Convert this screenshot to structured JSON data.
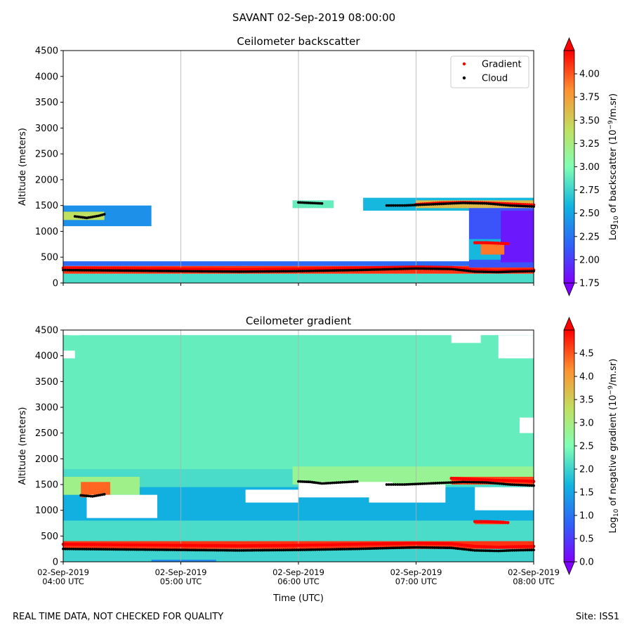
{
  "figure": {
    "suptitle": "SAVANT 02-Sep-2019 08:00:00",
    "footer_left": "REAL TIME DATA, NOT CHECKED FOR QUALITY",
    "footer_right": "Site: ISS1",
    "xlabel": "Time (UTC)"
  },
  "chart_data": [
    {
      "type": "heatmap",
      "title": "Ceilometer backscatter",
      "ylabel": "Altitude (meters)",
      "xlabel": "",
      "ylim": [
        0,
        4500
      ],
      "yticks": [
        0,
        500,
        1000,
        1500,
        2000,
        2500,
        3000,
        3500,
        4000,
        4500
      ],
      "xlim_hours": [
        4,
        8
      ],
      "xticks_hours": [
        4,
        5,
        6,
        7,
        8
      ],
      "xtick_labels": [],
      "grid": "vertical",
      "colorbar": {
        "label_parts": [
          "Log",
          "10",
          " of backscatter (10",
          "−9",
          "/m.sr)"
        ],
        "range": [
          1.75,
          4.25
        ],
        "ticks": [
          "1.75",
          "2.00",
          "2.25",
          "2.50",
          "2.75",
          "3.00",
          "3.25",
          "3.50",
          "3.75",
          "4.00"
        ],
        "extend": "both"
      },
      "legend": {
        "placement": "top-right",
        "entries": [
          {
            "name": "Gradient",
            "color": "#ff0000"
          },
          {
            "name": "Cloud",
            "color": "#000000"
          }
        ]
      },
      "regions": [
        {
          "t0": 4.0,
          "t1": 8.0,
          "h0": 0,
          "h1": 180,
          "value": 2.8
        },
        {
          "t0": 4.0,
          "t1": 8.0,
          "h0": 180,
          "h1": 330,
          "value": 4.1
        },
        {
          "t0": 4.0,
          "t1": 8.0,
          "h0": 330,
          "h1": 420,
          "value": 2.2
        },
        {
          "t0": 4.0,
          "t1": 4.75,
          "h0": 1100,
          "h1": 1500,
          "value": 2.4
        },
        {
          "t0": 4.0,
          "t1": 4.35,
          "h0": 1220,
          "h1": 1380,
          "value": 3.4
        },
        {
          "t0": 5.95,
          "t1": 6.3,
          "h0": 1450,
          "h1": 1600,
          "value": 2.9
        },
        {
          "t0": 6.55,
          "t1": 8.0,
          "h0": 1400,
          "h1": 1650,
          "value": 2.6
        },
        {
          "t0": 7.0,
          "t1": 8.0,
          "h0": 1450,
          "h1": 1600,
          "value": 3.6
        },
        {
          "t0": 7.45,
          "t1": 8.0,
          "h0": 300,
          "h1": 1450,
          "value": 2.1
        },
        {
          "t0": 7.72,
          "t1": 8.0,
          "h0": 400,
          "h1": 1400,
          "value": 1.85
        },
        {
          "t0": 7.45,
          "t1": 7.72,
          "h0": 450,
          "h1": 850,
          "value": 2.6
        },
        {
          "t0": 7.55,
          "t1": 7.75,
          "h0": 550,
          "h1": 780,
          "value": 3.9
        }
      ],
      "series": [
        {
          "name": "Gradient",
          "marker": "red-dot",
          "segments": [
            {
              "t": [
                4.0,
                4.5,
                5.0,
                5.5,
                6.0,
                6.5,
                7.0,
                7.3,
                7.5,
                7.7,
                7.8,
                8.0
              ],
              "h": [
                290,
                280,
                270,
                260,
                270,
                290,
                310,
                300,
                250,
                230,
                240,
                250
              ]
            },
            {
              "t": [
                7.0,
                7.2,
                7.4,
                7.6,
                7.8,
                8.0
              ],
              "h": [
                1520,
                1550,
                1560,
                1550,
                1530,
                1510
              ]
            },
            {
              "t": [
                7.5,
                7.6,
                7.7,
                7.78
              ],
              "h": [
                780,
                780,
                770,
                760
              ]
            }
          ]
        },
        {
          "name": "Cloud",
          "marker": "black-dot",
          "segments": [
            {
              "t": [
                4.0,
                4.5,
                5.0,
                5.5,
                6.0,
                6.5,
                7.0,
                7.3,
                7.5,
                7.7,
                7.8,
                8.0
              ],
              "h": [
                250,
                240,
                230,
                220,
                230,
                250,
                280,
                270,
                220,
                210,
                220,
                230
              ]
            },
            {
              "t": [
                4.1,
                4.2,
                4.3,
                4.35
              ],
              "h": [
                1290,
                1260,
                1300,
                1330
              ]
            },
            {
              "t": [
                6.0,
                6.1,
                6.2
              ],
              "h": [
                1560,
                1550,
                1540
              ]
            },
            {
              "t": [
                6.75,
                6.9,
                7.0,
                7.2,
                7.4,
                7.6,
                7.8,
                8.0
              ],
              "h": [
                1500,
                1500,
                1510,
                1530,
                1550,
                1540,
                1500,
                1480
              ]
            }
          ]
        }
      ]
    },
    {
      "type": "heatmap",
      "title": "Ceilometer gradient",
      "ylabel": "Altitude (meters)",
      "xlabel": "Time (UTC)",
      "ylim": [
        0,
        4500
      ],
      "yticks": [
        0,
        500,
        1000,
        1500,
        2000,
        2500,
        3000,
        3500,
        4000,
        4500
      ],
      "xlim_hours": [
        4,
        8
      ],
      "xticks_hours": [
        4,
        5,
        6,
        7,
        8
      ],
      "xtick_labels": [
        [
          "02-Sep-2019",
          "04:00 UTC"
        ],
        [
          "02-Sep-2019",
          "05:00 UTC"
        ],
        [
          "02-Sep-2019",
          "06:00 UTC"
        ],
        [
          "02-Sep-2019",
          "07:00 UTC"
        ],
        [
          "02-Sep-2019",
          "08:00 UTC"
        ]
      ],
      "grid": "vertical",
      "colorbar": {
        "label_parts": [
          "Log",
          "10",
          " of negative gradient (10",
          "−9",
          "/m.sr)"
        ],
        "range": [
          0.0,
          5.0
        ],
        "ticks": [
          "0.0",
          "0.5",
          "1.0",
          "1.5",
          "2.0",
          "2.5",
          "3.0",
          "3.5",
          "4.0",
          "4.5"
        ],
        "extend": "both"
      },
      "regions": [
        {
          "t0": 4.0,
          "t1": 8.0,
          "h0": 0,
          "h1": 4400,
          "value": 2.1
        },
        {
          "t0": 4.0,
          "t1": 8.0,
          "h0": 1800,
          "h1": 4400,
          "value": 2.3
        },
        {
          "t0": 4.0,
          "t1": 8.0,
          "h0": 800,
          "h1": 1450,
          "value": 1.6
        },
        {
          "t0": 4.0,
          "t1": 8.0,
          "h0": 0,
          "h1": 250,
          "value": 2.0
        },
        {
          "t0": 4.0,
          "t1": 8.0,
          "h0": 250,
          "h1": 400,
          "value": 4.7
        },
        {
          "t0": 4.0,
          "t1": 4.65,
          "h0": 1300,
          "h1": 1650,
          "value": 2.9
        },
        {
          "t0": 4.15,
          "t1": 4.4,
          "h0": 1250,
          "h1": 1550,
          "value": 4.4
        },
        {
          "t0": 5.95,
          "t1": 8.0,
          "h0": 1500,
          "h1": 1850,
          "value": 2.8
        },
        {
          "t0": 7.3,
          "t1": 8.0,
          "h0": 1500,
          "h1": 1650,
          "value": 4.6
        },
        {
          "t0": 7.5,
          "t1": 7.75,
          "h0": 730,
          "h1": 800,
          "value": 4.6
        },
        {
          "t0": 4.75,
          "t1": 5.3,
          "h0": 0,
          "h1": 40,
          "value": 1.2
        }
      ],
      "blanks": [
        {
          "t0": 4.2,
          "t1": 4.8,
          "h0": 850,
          "h1": 1300
        },
        {
          "t0": 5.55,
          "t1": 6.0,
          "h0": 1150,
          "h1": 1400
        },
        {
          "t0": 6.0,
          "t1": 6.8,
          "h0": 1250,
          "h1": 1550
        },
        {
          "t0": 6.6,
          "t1": 7.25,
          "h0": 1150,
          "h1": 1500
        },
        {
          "t0": 7.5,
          "t1": 8.0,
          "h0": 1000,
          "h1": 1450
        },
        {
          "t0": 7.3,
          "t1": 7.55,
          "h0": 4250,
          "h1": 4450
        },
        {
          "t0": 7.7,
          "t1": 8.0,
          "h0": 3950,
          "h1": 4400
        },
        {
          "t0": 7.88,
          "t1": 8.0,
          "h0": 2500,
          "h1": 2800
        },
        {
          "t0": 4.0,
          "t1": 4.1,
          "h0": 3950,
          "h1": 4100
        },
        {
          "t0": 4.05,
          "t1": 4.15,
          "h0": 4400,
          "h1": 4500
        }
      ],
      "series": [
        {
          "name": "Gradient",
          "marker": "red-dot",
          "segments": [
            {
              "t": [
                4.0,
                4.5,
                5.0,
                5.5,
                6.0,
                6.5,
                7.0,
                7.3,
                7.5,
                7.7,
                7.8,
                8.0
              ],
              "h": [
                340,
                330,
                320,
                310,
                320,
                340,
                360,
                350,
                300,
                280,
                290,
                300
              ]
            },
            {
              "t": [
                7.3,
                7.5,
                7.7,
                7.9,
                8.0
              ],
              "h": [
                1620,
                1600,
                1580,
                1570,
                1560
              ]
            },
            {
              "t": [
                7.5,
                7.6,
                7.7,
                7.78
              ],
              "h": [
                780,
                780,
                770,
                760
              ]
            }
          ]
        },
        {
          "name": "Cloud",
          "marker": "black-dot",
          "segments": [
            {
              "t": [
                4.0,
                4.5,
                5.0,
                5.5,
                6.0,
                6.5,
                7.0,
                7.3,
                7.5,
                7.7,
                7.8,
                8.0
              ],
              "h": [
                250,
                240,
                230,
                220,
                230,
                250,
                280,
                270,
                220,
                210,
                220,
                230
              ]
            },
            {
              "t": [
                4.15,
                4.25,
                4.35
              ],
              "h": [
                1290,
                1270,
                1310
              ]
            },
            {
              "t": [
                6.0,
                6.1,
                6.2,
                6.5
              ],
              "h": [
                1560,
                1550,
                1520,
                1560
              ]
            },
            {
              "t": [
                6.75,
                6.9,
                7.0,
                7.2,
                7.4,
                7.6,
                7.8,
                8.0
              ],
              "h": [
                1500,
                1500,
                1510,
                1530,
                1550,
                1540,
                1500,
                1480
              ]
            }
          ]
        }
      ]
    }
  ]
}
